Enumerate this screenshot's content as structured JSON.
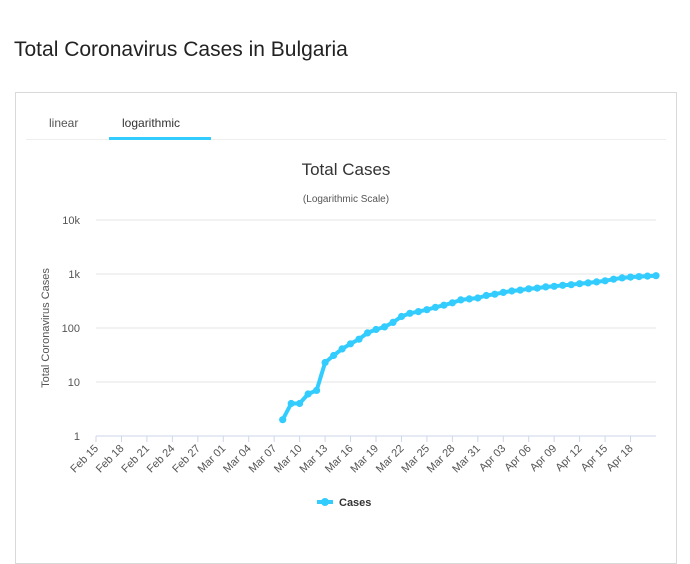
{
  "page": {
    "title": "Total Coronavirus Cases in Bulgaria"
  },
  "tabs": [
    {
      "label": "linear",
      "active": false
    },
    {
      "label": "logarithmic",
      "active": true
    }
  ],
  "colors": {
    "accent": "#33ccff",
    "series": "#33ccff",
    "grid": "#e6e6e6"
  },
  "chart_data": {
    "type": "line",
    "title": "Total Cases",
    "subtitle": "(Logarithmic Scale)",
    "ylabel": "Total Coronavirus Cases",
    "xlabel": "",
    "yscale": "log",
    "ylim": [
      1,
      10000
    ],
    "yticks": [
      {
        "value": 1,
        "label": "1"
      },
      {
        "value": 10,
        "label": "10"
      },
      {
        "value": 100,
        "label": "100"
      },
      {
        "value": 1000,
        "label": "1k"
      },
      {
        "value": 10000,
        "label": "10k"
      }
    ],
    "xlim": [
      "Feb 15",
      "Apr 21"
    ],
    "xticks": [
      "Feb 15",
      "Feb 18",
      "Feb 21",
      "Feb 24",
      "Feb 27",
      "Mar 01",
      "Mar 04",
      "Mar 07",
      "Mar 10",
      "Mar 13",
      "Mar 16",
      "Mar 19",
      "Mar 22",
      "Mar 25",
      "Mar 28",
      "Mar 31",
      "Apr 03",
      "Apr 06",
      "Apr 09",
      "Apr 12",
      "Apr 15",
      "Apr 18"
    ],
    "grid": true,
    "legend": "bottom-center",
    "series": [
      {
        "name": "Cases",
        "x": [
          "Mar 08",
          "Mar 09",
          "Mar 10",
          "Mar 11",
          "Mar 12",
          "Mar 13",
          "Mar 14",
          "Mar 15",
          "Mar 16",
          "Mar 17",
          "Mar 18",
          "Mar 19",
          "Mar 20",
          "Mar 21",
          "Mar 22",
          "Mar 23",
          "Mar 24",
          "Mar 25",
          "Mar 26",
          "Mar 27",
          "Mar 28",
          "Mar 29",
          "Mar 30",
          "Mar 31",
          "Apr 01",
          "Apr 02",
          "Apr 03",
          "Apr 04",
          "Apr 05",
          "Apr 06",
          "Apr 07",
          "Apr 08",
          "Apr 09",
          "Apr 10",
          "Apr 11",
          "Apr 12",
          "Apr 13",
          "Apr 14",
          "Apr 15",
          "Apr 16",
          "Apr 17",
          "Apr 18",
          "Apr 19",
          "Apr 20",
          "Apr 21"
        ],
        "values": [
          2,
          4,
          4,
          6,
          7,
          23,
          31,
          41,
          51,
          62,
          81,
          94,
          105,
          127,
          163,
          187,
          201,
          218,
          242,
          264,
          293,
          331,
          346,
          359,
          399,
          422,
          457,
          485,
          503,
          531,
          549,
          577,
          593,
          618,
          635,
          661,
          685,
          713,
          747,
          800,
          846,
          878,
          894,
          915,
          929
        ]
      }
    ]
  }
}
